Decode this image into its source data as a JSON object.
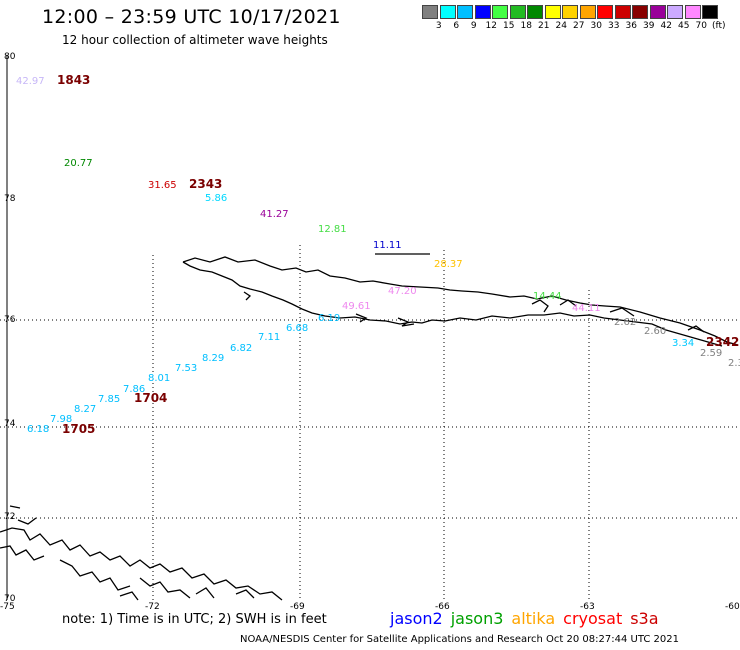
{
  "header": {
    "title": "12:00 – 23:59 UTC 10/17/2021",
    "subtitle": "12 hour collection of altimeter wave heights"
  },
  "legend": {
    "unit": "(ft)",
    "colors": [
      "#808080",
      "#00ffff",
      "#00bfff",
      "#0000ff",
      "#44ff44",
      "#22bb22",
      "#008800",
      "#ffff00",
      "#ffd200",
      "#ffa500",
      "#ff0000",
      "#cc0000",
      "#880000",
      "#990099",
      "#ccaaff",
      "#ff88ff",
      "#000000"
    ],
    "ticks": [
      "3",
      "6",
      "9",
      "12",
      "15",
      "18",
      "21",
      "24",
      "27",
      "30",
      "33",
      "36",
      "39",
      "42",
      "45",
      "70"
    ]
  },
  "map": {
    "lat_labels": [
      "80",
      "78",
      "76",
      "74",
      "72",
      "70"
    ],
    "lon_labels": [
      "-75",
      "-72",
      "-69",
      "-66",
      "-63",
      "-60"
    ],
    "observations": [
      {
        "text": "42.97",
        "color": "#c7b7f7"
      },
      {
        "text": "20.77",
        "color": "#008800"
      },
      {
        "text": "31.65",
        "color": "#cc0000"
      },
      {
        "text": "5.86",
        "color": "#00d8ff"
      },
      {
        "text": "41.27",
        "color": "#990099"
      },
      {
        "text": "12.81",
        "color": "#44dd44"
      },
      {
        "text": "11.11",
        "color": "#0000cc"
      },
      {
        "text": "28.37",
        "color": "#ffc200"
      },
      {
        "text": "47.20",
        "color": "#ee88ee"
      },
      {
        "text": "49.61",
        "color": "#ee88ee"
      },
      {
        "text": "14.44",
        "color": "#44dd44"
      },
      {
        "text": "44.11",
        "color": "#ee88ee"
      },
      {
        "text": "2.62",
        "color": "#808080"
      },
      {
        "text": "2.60",
        "color": "#808080"
      },
      {
        "text": "3.34",
        "color": "#00c8ff"
      },
      {
        "text": "2.59",
        "color": "#808080"
      },
      {
        "text": "2.3",
        "color": "#808080"
      },
      {
        "text": "6.19",
        "color": "#00bfff"
      },
      {
        "text": "6.68",
        "color": "#00bfff"
      },
      {
        "text": "7.11",
        "color": "#00bfff"
      },
      {
        "text": "6.82",
        "color": "#00bfff"
      },
      {
        "text": "8.29",
        "color": "#00bfff"
      },
      {
        "text": "7.53",
        "color": "#00bfff"
      },
      {
        "text": "8.01",
        "color": "#00bfff"
      },
      {
        "text": "7.86",
        "color": "#00bfff"
      },
      {
        "text": "7.85",
        "color": "#00bfff"
      },
      {
        "text": "8.27",
        "color": "#00bfff"
      },
      {
        "text": "7.98",
        "color": "#00bfff"
      },
      {
        "text": "6.18",
        "color": "#00bfff"
      }
    ],
    "times": [
      "1843",
      "2343",
      "1704",
      "1705",
      "2342"
    ]
  },
  "footer": {
    "note": "note: 1) Time is in UTC; 2) SWH is in feet",
    "satellites": [
      {
        "name": "jason2",
        "color": "#0000ff"
      },
      {
        "name": "jason3",
        "color": "#00a000"
      },
      {
        "name": "altika",
        "color": "#ffa500"
      },
      {
        "name": "cryosat",
        "color": "#ff0000"
      },
      {
        "name": "s3a",
        "color": "#cc0000"
      }
    ],
    "credit": "NOAA/NESDIS Center for Satellite Applications and Research    Oct 20 08:27:44 UTC 2021"
  }
}
